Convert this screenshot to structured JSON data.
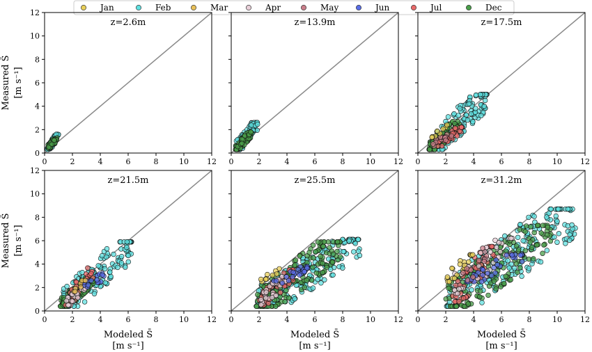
{
  "chart_data": {
    "type": "scatter",
    "legend": {
      "placement": "top-center",
      "entries": [
        {
          "name": "Jan",
          "color": "#e8cf5a"
        },
        {
          "name": "Feb",
          "color": "#5fe0e0"
        },
        {
          "name": "Mar",
          "color": "#e8c05a"
        },
        {
          "name": "Apr",
          "color": "#e8cfd8"
        },
        {
          "name": "May",
          "color": "#c97e8a"
        },
        {
          "name": "Jun",
          "color": "#5a6ee6"
        },
        {
          "name": "Jul",
          "color": "#e86a6a"
        },
        {
          "name": "Dec",
          "color": "#4a9e4a"
        }
      ]
    },
    "shared": {
      "xlim": [
        0,
        12
      ],
      "ylim": [
        0,
        12
      ],
      "xticks": [
        0,
        2,
        4,
        6,
        8,
        10,
        12
      ],
      "yticks": [
        0,
        2,
        4,
        6,
        8,
        10,
        12
      ],
      "reference_line": "y = x",
      "grid": false,
      "xlabel_line1": "Modeled S̄",
      "xlabel_line2": "[m s⁻¹]",
      "ylabel_line1": "Measured S̄",
      "ylabel_line2": "[m s⁻¹]"
    },
    "panels": [
      {
        "title": "z=2.6m",
        "clusters": [
          {
            "series": "Feb",
            "x_range": [
              0.2,
              1.0
            ],
            "y_range": [
              0.3,
              1.6
            ],
            "n": 60
          },
          {
            "series": "Dec",
            "x_range": [
              0.2,
              0.9
            ],
            "y_range": [
              0.4,
              1.3
            ],
            "n": 40
          }
        ]
      },
      {
        "title": "z=13.9m",
        "clusters": [
          {
            "series": "Feb",
            "x_range": [
              0.3,
              1.9
            ],
            "y_range": [
              0.3,
              2.6
            ],
            "n": 70
          },
          {
            "series": "Dec",
            "x_range": [
              0.3,
              1.5
            ],
            "y_range": [
              0.3,
              1.8
            ],
            "n": 50
          }
        ]
      },
      {
        "title": "z=17.5m",
        "clusters": [
          {
            "series": "Feb",
            "x_range": [
              0.8,
              5.0
            ],
            "y_range": [
              0.3,
              5.0
            ],
            "n": 130
          },
          {
            "series": "Dec",
            "x_range": [
              0.8,
              3.0
            ],
            "y_range": [
              0.3,
              2.7
            ],
            "n": 90
          },
          {
            "series": "Jul",
            "x_range": [
              1.4,
              3.2
            ],
            "y_range": [
              0.6,
              2.2
            ],
            "n": 30
          },
          {
            "series": "May",
            "x_range": [
              1.0,
              2.5
            ],
            "y_range": [
              0.6,
              1.8
            ],
            "n": 15
          },
          {
            "series": "Jan",
            "x_range": [
              1.0,
              2.2
            ],
            "y_range": [
              1.3,
              2.4
            ],
            "n": 8
          }
        ]
      },
      {
        "title": "z=21.5m",
        "clusters": [
          {
            "series": "Feb",
            "x_range": [
              1.2,
              6.4
            ],
            "y_range": [
              0.4,
              5.9
            ],
            "n": 130
          },
          {
            "series": "Dec",
            "x_range": [
              1.1,
              3.5
            ],
            "y_range": [
              0.4,
              2.8
            ],
            "n": 110
          },
          {
            "series": "Jul",
            "x_range": [
              1.5,
              3.5
            ],
            "y_range": [
              0.5,
              3.8
            ],
            "n": 30
          },
          {
            "series": "Apr",
            "x_range": [
              1.5,
              3.0
            ],
            "y_range": [
              0.5,
              2.5
            ],
            "n": 25
          },
          {
            "series": "Jun",
            "x_range": [
              2.5,
              4.5
            ],
            "y_range": [
              1.8,
              3.2
            ],
            "n": 15
          },
          {
            "series": "Mar",
            "x_range": [
              1.8,
              3.0
            ],
            "y_range": [
              1.6,
              2.6
            ],
            "n": 8
          }
        ]
      },
      {
        "title": "z=25.5m",
        "clusters": [
          {
            "series": "Feb",
            "x_range": [
              1.8,
              9.3
            ],
            "y_range": [
              0.4,
              6.1
            ],
            "n": 180
          },
          {
            "series": "Dec",
            "x_range": [
              1.8,
              7.9
            ],
            "y_range": [
              0.4,
              5.9
            ],
            "n": 150
          },
          {
            "series": "Jul",
            "x_range": [
              2.0,
              4.5
            ],
            "y_range": [
              0.5,
              3.5
            ],
            "n": 40
          },
          {
            "series": "Apr",
            "x_range": [
              2.0,
              4.0
            ],
            "y_range": [
              0.5,
              3.0
            ],
            "n": 35
          },
          {
            "series": "Jun",
            "x_range": [
              3.0,
              5.5
            ],
            "y_range": [
              2.2,
              3.8
            ],
            "n": 25
          },
          {
            "series": "Jan",
            "x_range": [
              2.0,
              3.5
            ],
            "y_range": [
              2.5,
              3.6
            ],
            "n": 10
          }
        ]
      },
      {
        "title": "z=31.2m",
        "clusters": [
          {
            "series": "Feb",
            "x_range": [
              2.0,
              11.3
            ],
            "y_range": [
              0.4,
              8.7
            ],
            "n": 200
          },
          {
            "series": "Dec",
            "x_range": [
              2.0,
              9.7
            ],
            "y_range": [
              0.4,
              7.3
            ],
            "n": 170
          },
          {
            "series": "Jul",
            "x_range": [
              2.5,
              5.5
            ],
            "y_range": [
              0.8,
              5.5
            ],
            "n": 50
          },
          {
            "series": "Apr",
            "x_range": [
              2.2,
              7.0
            ],
            "y_range": [
              1.5,
              6.2
            ],
            "n": 40
          },
          {
            "series": "Jun",
            "x_range": [
              3.5,
              7.5
            ],
            "y_range": [
              2.5,
              4.8
            ],
            "n": 30
          },
          {
            "series": "Jan",
            "x_range": [
              2.0,
              4.0
            ],
            "y_range": [
              2.5,
              4.8
            ],
            "n": 20
          },
          {
            "series": "May",
            "x_range": [
              3.0,
              5.0
            ],
            "y_range": [
              2.0,
              5.5
            ],
            "n": 12
          }
        ]
      }
    ]
  }
}
